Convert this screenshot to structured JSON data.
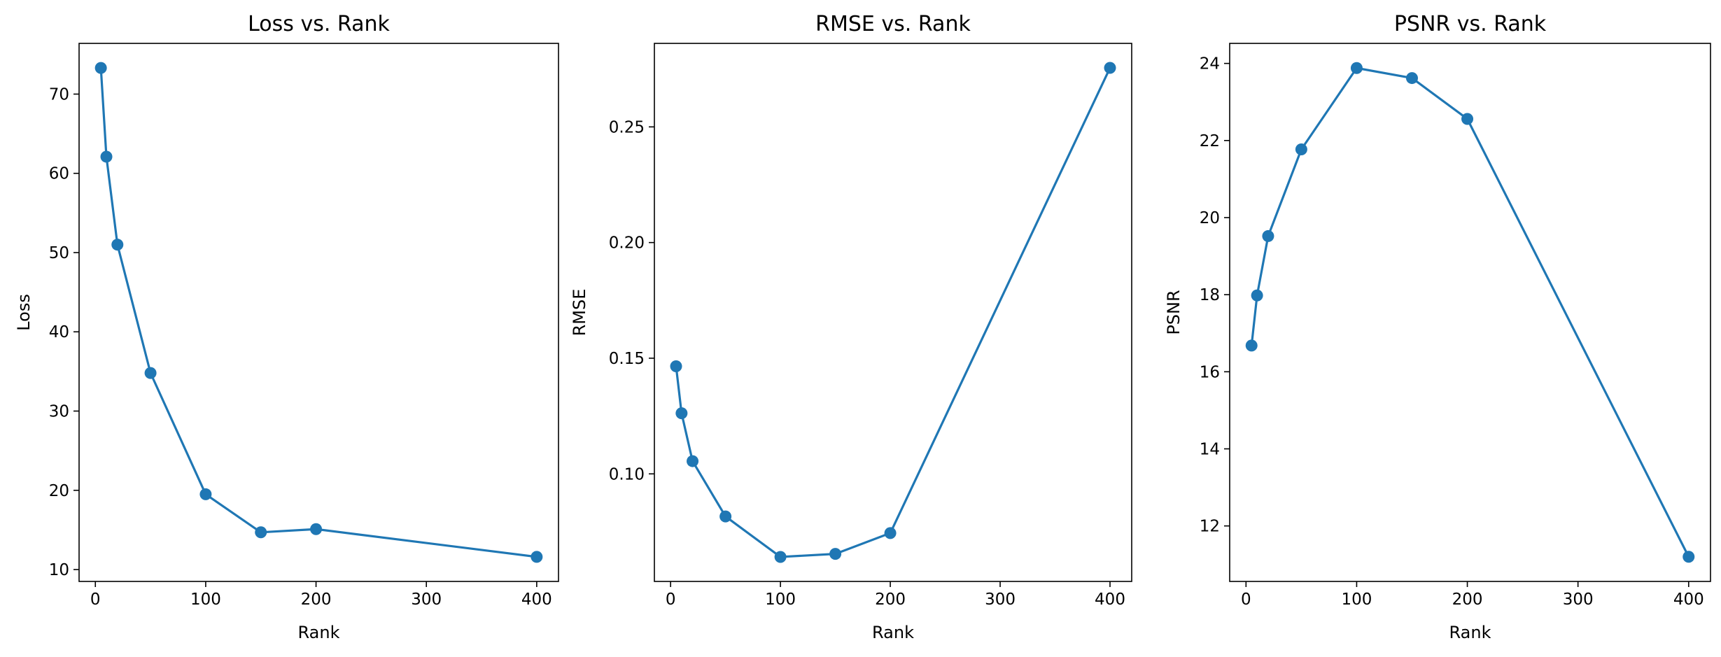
{
  "colors": {
    "line": "#1f77b4",
    "axis": "#000000",
    "background": "#ffffff"
  },
  "chart_data": [
    {
      "type": "line",
      "title": "Loss vs. Rank",
      "xlabel": "Rank",
      "ylabel": "Loss",
      "x": [
        5,
        10,
        20,
        50,
        100,
        150,
        200,
        400
      ],
      "values": [
        73.3,
        62.1,
        51.0,
        34.8,
        19.5,
        14.7,
        15.1,
        11.6
      ],
      "xlim": [
        -14.75,
        419.75
      ],
      "ylim": [
        8.5,
        76.4
      ],
      "xticks": [
        0,
        100,
        200,
        300,
        400
      ],
      "xtick_labels": [
        "0",
        "100",
        "200",
        "300",
        "400"
      ],
      "yticks": [
        10,
        20,
        30,
        40,
        50,
        60,
        70
      ],
      "ytick_labels": [
        "10",
        "20",
        "30",
        "40",
        "50",
        "60",
        "70"
      ],
      "grid": false
    },
    {
      "type": "line",
      "title": "RMSE vs. Rank",
      "xlabel": "Rank",
      "ylabel": "RMSE",
      "x": [
        5,
        10,
        20,
        50,
        100,
        150,
        200,
        400
      ],
      "values": [
        0.1465,
        0.1262,
        0.1055,
        0.0816,
        0.0641,
        0.0654,
        0.0744,
        0.2755
      ],
      "xlim": [
        -14.75,
        419.75
      ],
      "ylim": [
        0.0535,
        0.2861
      ],
      "xticks": [
        0,
        100,
        200,
        300,
        400
      ],
      "xtick_labels": [
        "0",
        "100",
        "200",
        "300",
        "400"
      ],
      "yticks": [
        0.1,
        0.15,
        0.2,
        0.25
      ],
      "ytick_labels": [
        "0.10",
        "0.15",
        "0.20",
        "0.25"
      ],
      "grid": false
    },
    {
      "type": "line",
      "title": "PSNR vs. Rank",
      "xlabel": "Rank",
      "ylabel": "PSNR",
      "x": [
        5,
        10,
        20,
        50,
        100,
        150,
        200,
        400
      ],
      "values": [
        16.68,
        17.98,
        19.52,
        21.77,
        23.88,
        23.62,
        22.56,
        11.2
      ],
      "xlim": [
        -14.75,
        419.75
      ],
      "ylim": [
        10.56,
        24.52
      ],
      "xticks": [
        0,
        100,
        200,
        300,
        400
      ],
      "xtick_labels": [
        "0",
        "100",
        "200",
        "300",
        "400"
      ],
      "yticks": [
        12,
        14,
        16,
        18,
        20,
        22,
        24
      ],
      "ytick_labels": [
        "12",
        "14",
        "16",
        "18",
        "20",
        "22",
        "24"
      ],
      "grid": false
    }
  ]
}
